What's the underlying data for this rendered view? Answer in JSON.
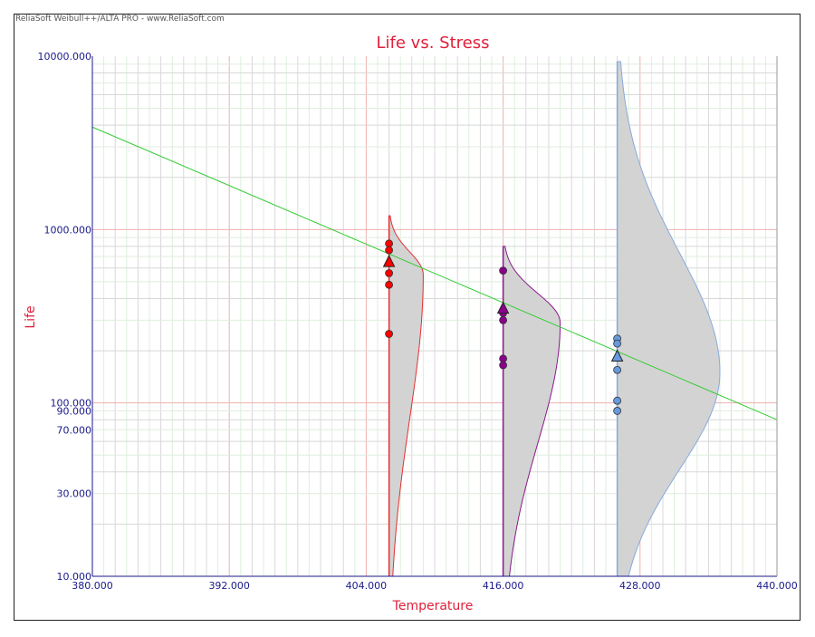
{
  "header": {
    "watermark": "ReliaSoft Weibull++/ALTA PRO - www.ReliaSoft.com"
  },
  "chart_data": {
    "type": "scatter",
    "title": "Life vs. Stress",
    "xlabel": "Temperature",
    "ylabel": "Life",
    "xlim": [
      380,
      440
    ],
    "ylim": [
      10,
      10000
    ],
    "yscale": "log",
    "grid": true,
    "x_ticks": [
      "380.000",
      "392.000",
      "404.000",
      "416.000",
      "428.000",
      "440.000"
    ],
    "y_ticks": [
      {
        "value": 10000,
        "label": "10000.000"
      },
      {
        "value": 1000,
        "label": "1000.000"
      },
      {
        "value": 100,
        "label": "100.000"
      },
      {
        "value": 90,
        "label": "90.000"
      },
      {
        "value": 70,
        "label": "70.000"
      },
      {
        "value": 30,
        "label": "30.000"
      },
      {
        "value": 10,
        "label": "10.000"
      }
    ],
    "fit_line": {
      "color": "#33cc33",
      "points": [
        [
          380,
          3900
        ],
        [
          440,
          80
        ]
      ]
    },
    "series": [
      {
        "stress": 406,
        "color": "#ff0000",
        "line_color": "#e53030",
        "values": [
          830,
          760,
          560,
          480,
          250
        ],
        "mean_life": 650,
        "pdf_peak_life": 550,
        "pdf_width": 3,
        "pdf_top": 1200
      },
      {
        "stress": 416,
        "color": "#8b008b",
        "line_color": "#8b1a8b",
        "values": [
          580,
          330,
          300,
          180,
          165
        ],
        "mean_life": 350,
        "pdf_peak_life": 290,
        "pdf_width": 5,
        "pdf_top": 800
      },
      {
        "stress": 426,
        "color": "#6699dd",
        "line_color": "#88aadd",
        "values": [
          235,
          220,
          155,
          103,
          90
        ],
        "mean_life": 185,
        "pdf_peak_life": 150,
        "pdf_width": 9,
        "pdf_top": 9300
      }
    ]
  }
}
